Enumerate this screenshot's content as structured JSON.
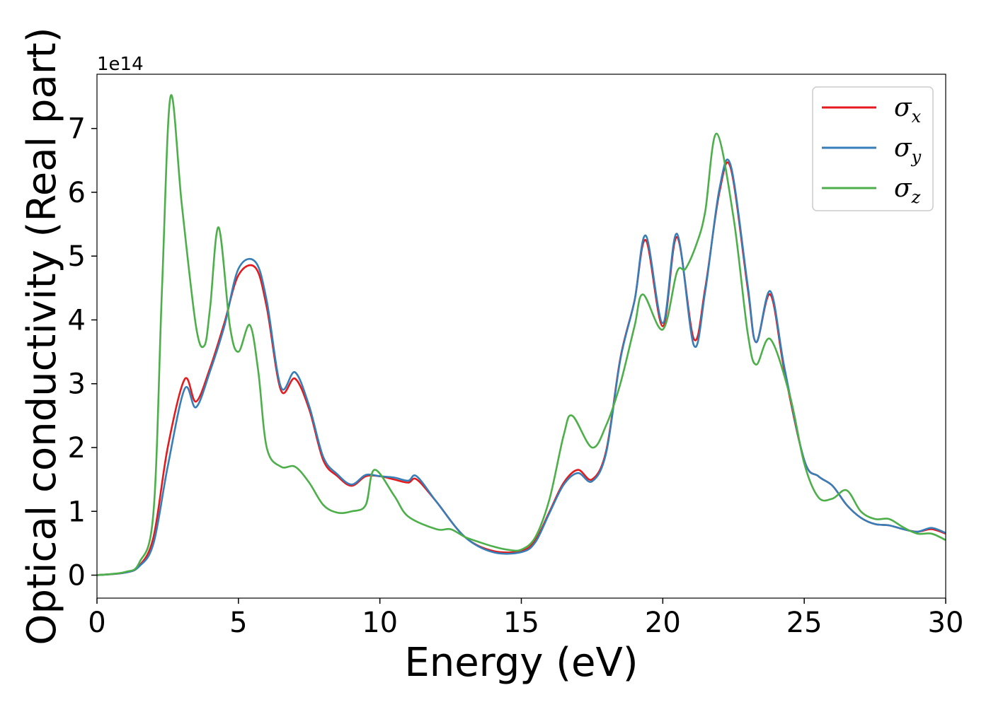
{
  "chart_data": {
    "type": "line",
    "xlabel": "Energy (eV)",
    "ylabel": "Optical conductivity (Real part)",
    "y_offset_label": "1e14",
    "xlim": [
      0,
      30
    ],
    "ylim": [
      -0.36,
      7.85
    ],
    "x_ticks": [
      0,
      5,
      10,
      15,
      20,
      25,
      30
    ],
    "y_ticks": [
      0,
      1,
      2,
      3,
      4,
      5,
      6,
      7
    ],
    "grid": false,
    "legend_position": "top-right",
    "series": [
      {
        "name": "σx",
        "symbol": "σ",
        "subscript": "x",
        "color": "#e41a1c",
        "points": [
          [
            0,
            0
          ],
          [
            1,
            0.04
          ],
          [
            1.5,
            0.15
          ],
          [
            2,
            0.6
          ],
          [
            2.5,
            2.0
          ],
          [
            3.1,
            3.07
          ],
          [
            3.5,
            2.72
          ],
          [
            4,
            3.25
          ],
          [
            4.5,
            3.95
          ],
          [
            5,
            4.7
          ],
          [
            5.6,
            4.82
          ],
          [
            6,
            4.2
          ],
          [
            6.5,
            2.9
          ],
          [
            7,
            3.08
          ],
          [
            7.5,
            2.6
          ],
          [
            8,
            1.8
          ],
          [
            8.5,
            1.55
          ],
          [
            9,
            1.4
          ],
          [
            9.5,
            1.55
          ],
          [
            10,
            1.55
          ],
          [
            10.5,
            1.5
          ],
          [
            11,
            1.45
          ],
          [
            11.3,
            1.5
          ],
          [
            12,
            1.15
          ],
          [
            13,
            0.6
          ],
          [
            14,
            0.38
          ],
          [
            15,
            0.38
          ],
          [
            15.5,
            0.55
          ],
          [
            16,
            1.0
          ],
          [
            16.5,
            1.45
          ],
          [
            17,
            1.65
          ],
          [
            17.5,
            1.5
          ],
          [
            18,
            1.95
          ],
          [
            18.5,
            3.4
          ],
          [
            19,
            4.3
          ],
          [
            19.4,
            5.25
          ],
          [
            20,
            3.9
          ],
          [
            20.5,
            5.3
          ],
          [
            21.1,
            3.7
          ],
          [
            21.5,
            4.5
          ],
          [
            22,
            6.0
          ],
          [
            22.4,
            6.38
          ],
          [
            23,
            4.5
          ],
          [
            23.3,
            3.65
          ],
          [
            23.8,
            4.4
          ],
          [
            24.3,
            3.2
          ],
          [
            25,
            1.8
          ],
          [
            25.5,
            1.55
          ],
          [
            26,
            1.4
          ],
          [
            26.5,
            1.1
          ],
          [
            27,
            0.9
          ],
          [
            27.5,
            0.8
          ],
          [
            28,
            0.78
          ],
          [
            28.5,
            0.72
          ],
          [
            29,
            0.68
          ],
          [
            29.5,
            0.72
          ],
          [
            30,
            0.65
          ]
        ]
      },
      {
        "name": "σy",
        "symbol": "σ",
        "subscript": "y",
        "color": "#377eb8",
        "points": [
          [
            0,
            0
          ],
          [
            1,
            0.04
          ],
          [
            1.5,
            0.14
          ],
          [
            2,
            0.5
          ],
          [
            2.5,
            1.7
          ],
          [
            3.1,
            2.92
          ],
          [
            3.5,
            2.63
          ],
          [
            4,
            3.2
          ],
          [
            4.5,
            3.9
          ],
          [
            5,
            4.8
          ],
          [
            5.6,
            4.91
          ],
          [
            6,
            4.3
          ],
          [
            6.5,
            2.95
          ],
          [
            7,
            3.18
          ],
          [
            7.5,
            2.65
          ],
          [
            8,
            1.85
          ],
          [
            8.5,
            1.58
          ],
          [
            9,
            1.42
          ],
          [
            9.5,
            1.57
          ],
          [
            10,
            1.55
          ],
          [
            10.5,
            1.53
          ],
          [
            11,
            1.48
          ],
          [
            11.3,
            1.55
          ],
          [
            12,
            1.15
          ],
          [
            13,
            0.6
          ],
          [
            14,
            0.36
          ],
          [
            15,
            0.36
          ],
          [
            15.5,
            0.52
          ],
          [
            16,
            0.98
          ],
          [
            16.5,
            1.42
          ],
          [
            17,
            1.6
          ],
          [
            17.5,
            1.47
          ],
          [
            18,
            1.92
          ],
          [
            18.5,
            3.38
          ],
          [
            19,
            4.3
          ],
          [
            19.4,
            5.32
          ],
          [
            20,
            3.95
          ],
          [
            20.5,
            5.35
          ],
          [
            21.1,
            3.6
          ],
          [
            21.5,
            4.45
          ],
          [
            22,
            6.05
          ],
          [
            22.4,
            6.42
          ],
          [
            23,
            4.55
          ],
          [
            23.3,
            3.65
          ],
          [
            23.8,
            4.45
          ],
          [
            24.3,
            3.25
          ],
          [
            25,
            1.8
          ],
          [
            25.5,
            1.55
          ],
          [
            26,
            1.4
          ],
          [
            26.5,
            1.1
          ],
          [
            27,
            0.9
          ],
          [
            27.5,
            0.8
          ],
          [
            28,
            0.78
          ],
          [
            28.5,
            0.72
          ],
          [
            29,
            0.68
          ],
          [
            29.5,
            0.74
          ],
          [
            30,
            0.66
          ]
        ]
      },
      {
        "name": "σz",
        "symbol": "σ",
        "subscript": "z",
        "color": "#4daf4a",
        "points": [
          [
            0,
            0
          ],
          [
            1,
            0.05
          ],
          [
            1.5,
            0.2
          ],
          [
            2,
            1.0
          ],
          [
            2.3,
            4.5
          ],
          [
            2.6,
            7.5
          ],
          [
            3,
            5.8
          ],
          [
            3.5,
            3.9
          ],
          [
            3.8,
            3.6
          ],
          [
            4,
            4.2
          ],
          [
            4.3,
            5.45
          ],
          [
            4.7,
            3.9
          ],
          [
            5,
            3.5
          ],
          [
            5.4,
            3.92
          ],
          [
            5.7,
            3.2
          ],
          [
            6,
            2.0
          ],
          [
            6.5,
            1.7
          ],
          [
            7,
            1.7
          ],
          [
            7.5,
            1.45
          ],
          [
            8,
            1.1
          ],
          [
            8.5,
            0.98
          ],
          [
            9,
            1.0
          ],
          [
            9.5,
            1.1
          ],
          [
            9.8,
            1.65
          ],
          [
            10.5,
            1.25
          ],
          [
            11,
            0.92
          ],
          [
            12,
            0.72
          ],
          [
            12.5,
            0.72
          ],
          [
            13,
            0.6
          ],
          [
            13.5,
            0.52
          ],
          [
            14,
            0.45
          ],
          [
            14.5,
            0.4
          ],
          [
            15,
            0.4
          ],
          [
            15.5,
            0.6
          ],
          [
            16,
            1.2
          ],
          [
            16.5,
            2.2
          ],
          [
            16.8,
            2.5
          ],
          [
            17.5,
            2.0
          ],
          [
            18,
            2.35
          ],
          [
            18.5,
            3.0
          ],
          [
            19,
            3.9
          ],
          [
            19.3,
            4.4
          ],
          [
            20,
            3.85
          ],
          [
            20.5,
            4.75
          ],
          [
            20.8,
            4.8
          ],
          [
            21.2,
            5.2
          ],
          [
            21.5,
            5.7
          ],
          [
            21.9,
            6.92
          ],
          [
            22.5,
            5.6
          ],
          [
            23,
            3.8
          ],
          [
            23.3,
            3.3
          ],
          [
            23.8,
            3.7
          ],
          [
            24.5,
            2.8
          ],
          [
            25,
            1.75
          ],
          [
            25.5,
            1.22
          ],
          [
            26,
            1.2
          ],
          [
            26.5,
            1.33
          ],
          [
            27,
            1.0
          ],
          [
            27.5,
            0.88
          ],
          [
            28,
            0.88
          ],
          [
            28.5,
            0.75
          ],
          [
            29,
            0.65
          ],
          [
            29.5,
            0.65
          ],
          [
            30,
            0.55
          ]
        ]
      }
    ]
  }
}
